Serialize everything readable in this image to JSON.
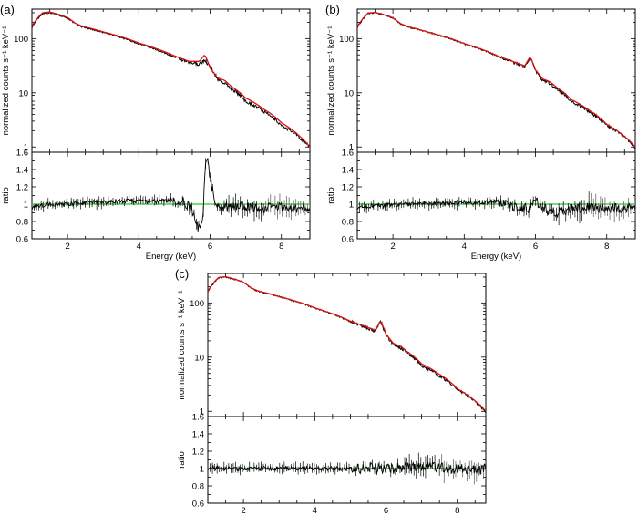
{
  "colors": {
    "data": "#000000",
    "model": "#dd1111",
    "unity": "#22cc22",
    "frame": "#000000"
  },
  "shared": {
    "xlabel": "Energy (keV)",
    "ylabel_top": "normalized counts s⁻¹ keV⁻¹",
    "ylabel_bottom": "ratio",
    "x_ticks": [
      "2",
      "4",
      "6",
      "8"
    ],
    "y_ticks_top": [
      "1",
      "10",
      "100"
    ],
    "y_ticks_bottom": [
      "0.6",
      "0.8",
      "1",
      "1.2",
      "1.4",
      "1.6"
    ]
  },
  "chart_data": [
    {
      "label": "(a)",
      "type": "line",
      "xlabel": "Energy (keV)",
      "ylabel": "normalized counts s⁻¹ keV⁻¹",
      "xlim": [
        1.0,
        8.8
      ],
      "ylim": [
        0.8,
        350
      ],
      "yscale": "log",
      "series": [
        {
          "role": "data",
          "x": [
            1.0,
            1.3,
            1.5,
            1.7,
            2.0,
            2.2,
            2.4,
            3.0,
            3.5,
            4.0,
            4.5,
            5.0,
            5.4,
            5.7,
            5.85,
            6.0,
            6.2,
            6.4,
            6.6,
            7.0,
            7.5,
            8.0,
            8.5,
            8.8
          ],
          "y": [
            160,
            290,
            300,
            280,
            240,
            190,
            165,
            130,
            105,
            80,
            62,
            45,
            36,
            34,
            40,
            30,
            18,
            15,
            12,
            7,
            4.5,
            2.5,
            1.5,
            1.0
          ]
        },
        {
          "role": "model",
          "x": [
            1.0,
            1.3,
            1.5,
            1.7,
            2.0,
            2.2,
            2.4,
            3.0,
            3.5,
            4.0,
            4.5,
            5.0,
            5.4,
            5.7,
            5.85,
            6.0,
            6.2,
            6.4,
            6.6,
            7.0,
            7.5,
            8.0,
            8.5,
            8.8
          ],
          "y": [
            170,
            300,
            310,
            285,
            245,
            195,
            170,
            133,
            108,
            83,
            65,
            48,
            38,
            38,
            50,
            28,
            19,
            17,
            13,
            8,
            5,
            2.8,
            1.6,
            1.0
          ]
        }
      ],
      "ratio": {
        "ylim": [
          0.6,
          1.6
        ],
        "reference": 1.0,
        "x": [
          1.0,
          1.5,
          2.0,
          2.5,
          3.0,
          3.5,
          4.0,
          4.5,
          5.0,
          5.3,
          5.5,
          5.6,
          5.7,
          5.8,
          5.85,
          5.9,
          6.0,
          6.1,
          6.2,
          6.4,
          6.6,
          7.0,
          7.5,
          8.0,
          8.5,
          8.8
        ],
        "y": [
          0.96,
          1.0,
          1.0,
          1.02,
          1.02,
          1.03,
          1.04,
          1.03,
          1.05,
          1.02,
          0.92,
          0.78,
          0.72,
          0.85,
          1.3,
          1.55,
          1.3,
          1.1,
          0.95,
          0.96,
          0.98,
          0.97,
          0.95,
          0.97,
          0.95,
          0.96
        ]
      }
    },
    {
      "label": "(b)",
      "type": "line",
      "xlabel": "Energy (keV)",
      "ylabel": "normalized counts s⁻¹ keV⁻¹",
      "xlim": [
        1.0,
        8.8
      ],
      "ylim": [
        0.8,
        350
      ],
      "yscale": "log",
      "series": [
        {
          "role": "data",
          "x": [
            1.0,
            1.3,
            1.5,
            1.7,
            2.0,
            2.2,
            2.4,
            3.0,
            3.5,
            4.0,
            4.5,
            5.0,
            5.4,
            5.7,
            5.85,
            6.0,
            6.2,
            6.4,
            6.6,
            7.0,
            7.5,
            8.0,
            8.5,
            8.8
          ],
          "y": [
            160,
            290,
            300,
            280,
            240,
            190,
            165,
            130,
            105,
            80,
            62,
            45,
            36,
            30,
            45,
            25,
            17,
            15,
            12,
            7,
            4.5,
            2.5,
            1.5,
            1.0
          ]
        },
        {
          "role": "model",
          "x": [
            1.0,
            1.3,
            1.5,
            1.7,
            2.0,
            2.2,
            2.4,
            3.0,
            3.5,
            4.0,
            4.5,
            5.0,
            5.4,
            5.7,
            5.85,
            6.0,
            6.2,
            6.4,
            6.6,
            7.0,
            7.5,
            8.0,
            8.5,
            8.8
          ],
          "y": [
            165,
            295,
            305,
            282,
            242,
            192,
            167,
            131,
            106,
            81,
            63,
            46,
            37,
            31,
            46,
            26,
            18,
            16,
            12.5,
            7.5,
            4.8,
            2.6,
            1.55,
            1.0
          ]
        }
      ],
      "ratio": {
        "ylim": [
          0.6,
          1.6
        ],
        "reference": 1.0,
        "x": [
          1.0,
          1.5,
          2.0,
          2.5,
          3.0,
          3.5,
          4.0,
          4.5,
          5.0,
          5.5,
          5.8,
          6.0,
          6.2,
          6.4,
          6.6,
          6.8,
          7.0,
          7.5,
          8.0,
          8.5,
          8.8
        ],
        "y": [
          0.96,
          0.98,
          0.99,
          1.0,
          1.0,
          1.01,
          1.02,
          1.02,
          1.03,
          0.96,
          0.95,
          1.03,
          0.97,
          0.93,
          0.9,
          0.92,
          0.95,
          0.97,
          0.96,
          0.95,
          0.96
        ]
      }
    },
    {
      "label": "(c)",
      "type": "line",
      "xlabel": "Energy (keV)",
      "ylabel": "normalized counts s⁻¹ keV⁻¹",
      "xlim": [
        1.0,
        8.8
      ],
      "ylim": [
        0.8,
        350
      ],
      "yscale": "log",
      "series": [
        {
          "role": "data",
          "x": [
            1.0,
            1.3,
            1.5,
            1.7,
            2.0,
            2.2,
            2.4,
            3.0,
            3.5,
            4.0,
            4.5,
            5.0,
            5.4,
            5.7,
            5.85,
            6.0,
            6.2,
            6.4,
            6.6,
            7.0,
            7.5,
            8.0,
            8.5,
            8.8
          ],
          "y": [
            160,
            290,
            300,
            280,
            240,
            190,
            165,
            130,
            105,
            80,
            62,
            45,
            36,
            30,
            45,
            25,
            17,
            15,
            12,
            7,
            4.5,
            2.5,
            1.5,
            1.0
          ]
        },
        {
          "role": "model",
          "x": [
            1.0,
            1.3,
            1.5,
            1.7,
            2.0,
            2.2,
            2.4,
            3.0,
            3.5,
            4.0,
            4.5,
            5.0,
            5.4,
            5.7,
            5.85,
            6.0,
            6.2,
            6.4,
            6.6,
            7.0,
            7.5,
            8.0,
            8.5,
            8.8
          ],
          "y": [
            165,
            295,
            305,
            282,
            242,
            192,
            167,
            131,
            106,
            81,
            63,
            46,
            37,
            31,
            46,
            26,
            18,
            16,
            12.5,
            7.5,
            4.8,
            2.6,
            1.55,
            1.0
          ]
        }
      ],
      "ratio": {
        "ylim": [
          0.6,
          1.6
        ],
        "reference": 1.0,
        "x": [
          1.0,
          1.5,
          2.0,
          2.5,
          3.0,
          3.5,
          4.0,
          4.5,
          5.0,
          5.5,
          6.0,
          6.5,
          7.0,
          7.5,
          8.0,
          8.5,
          8.8
        ],
        "y": [
          1.01,
          1.0,
          1.0,
          1.0,
          1.0,
          1.0,
          1.0,
          1.0,
          1.0,
          1.01,
          1.0,
          1.02,
          1.03,
          1.01,
          1.0,
          0.98,
          1.0
        ]
      }
    }
  ]
}
